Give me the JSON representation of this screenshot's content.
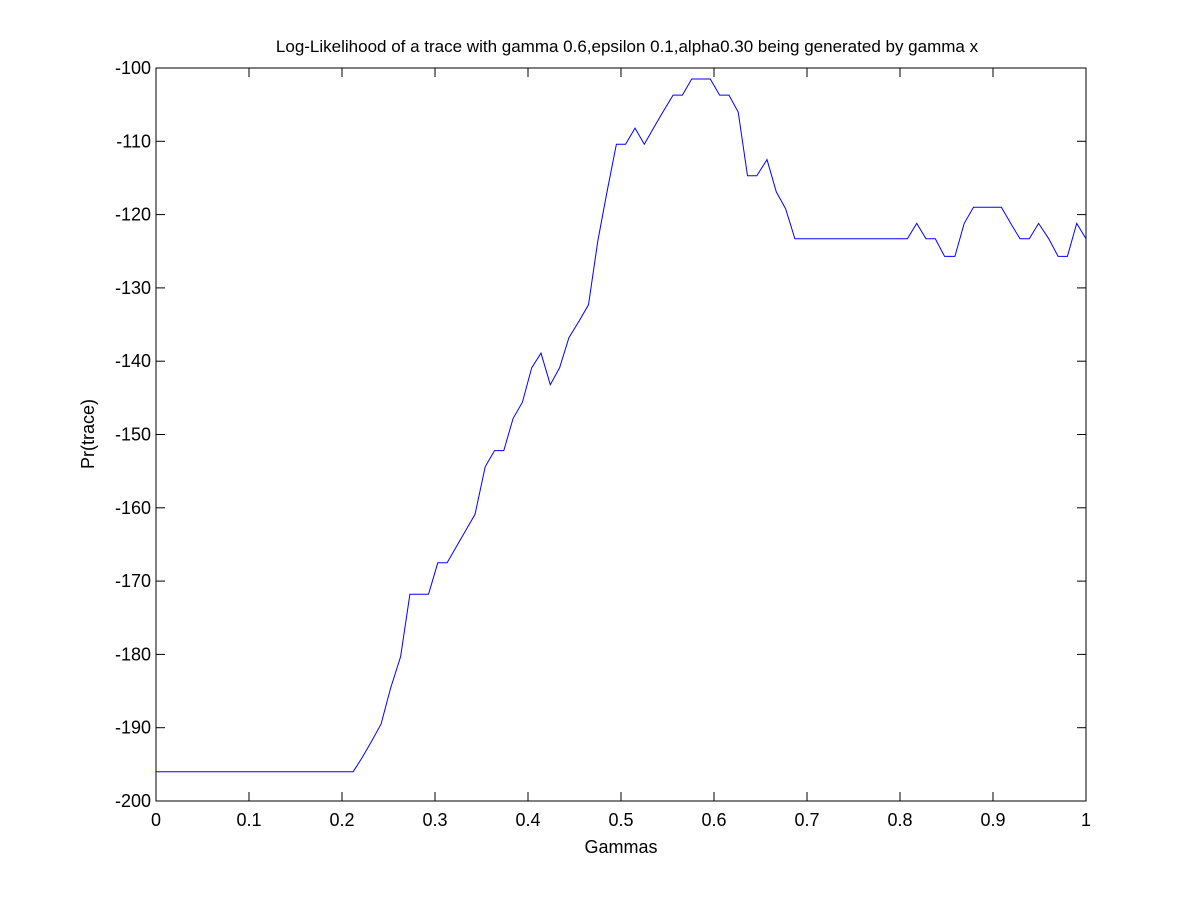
{
  "chart_data": {
    "type": "line",
    "title": "Log-Likelihood of a trace with gamma 0.6,epsilon 0.1,alpha0.30 being generated by gamma x",
    "xlabel": "Gammas",
    "ylabel": "Pr(trace)",
    "xlim": [
      0,
      1
    ],
    "ylim": [
      -200,
      -100
    ],
    "xticks": [
      "0",
      "0.1",
      "0.2",
      "0.3",
      "0.4",
      "0.5",
      "0.6",
      "0.7",
      "0.8",
      "0.9",
      "1"
    ],
    "yticks": [
      "-100",
      "-110",
      "-120",
      "-130",
      "-140",
      "-150",
      "-160",
      "-170",
      "-180",
      "-190",
      "-200"
    ],
    "xtick_values": [
      0,
      0.1,
      0.2,
      0.3,
      0.4,
      0.5,
      0.6,
      0.7,
      0.8,
      0.9,
      1
    ],
    "ytick_values": [
      -100,
      -110,
      -120,
      -130,
      -140,
      -150,
      -160,
      -170,
      -180,
      -190,
      -200
    ],
    "grid": false,
    "line_color": "#0000ff",
    "series": [
      {
        "x": [
          0,
          0.212,
          0.222,
          0.232,
          0.242,
          0.252,
          0.263,
          0.273,
          0.283,
          0.293,
          0.303,
          0.313,
          0.323,
          0.333,
          0.343,
          0.354,
          0.364,
          0.374,
          0.384,
          0.394,
          0.404,
          0.414,
          0.424,
          0.434,
          0.444,
          0.455,
          0.465,
          0.475,
          0.485,
          0.495,
          0.505,
          0.515,
          0.525,
          0.535,
          0.545,
          0.556,
          0.566,
          0.576,
          0.586,
          0.596,
          0.606,
          0.616,
          0.626,
          0.636,
          0.646,
          0.657,
          0.667,
          0.677,
          0.687,
          0.808,
          0.818,
          0.828,
          0.838,
          0.848,
          0.859,
          0.869,
          0.879,
          0.889,
          0.899,
          0.909,
          0.919,
          0.929,
          0.939,
          0.949,
          0.96,
          0.97,
          0.98,
          0.99,
          1.0
        ],
        "y": [
          -196,
          -196,
          -194,
          -191.8,
          -189.5,
          -184.7,
          -180.3,
          -171.8,
          -171.8,
          -171.8,
          -167.5,
          -167.5,
          -165.3,
          -163.1,
          -160.9,
          -154.4,
          -152.2,
          -152.2,
          -147.8,
          -145.6,
          -140.9,
          -138.9,
          -143.2,
          -140.9,
          -136.8,
          -134.5,
          -132.3,
          -123.6,
          -116.9,
          -110.4,
          -110.4,
          -108.2,
          -110.4,
          -108.2,
          -106.0,
          -103.7,
          -103.7,
          -101.5,
          -101.5,
          -101.5,
          -103.7,
          -103.7,
          -106.0,
          -114.7,
          -114.7,
          -112.5,
          -116.9,
          -119.2,
          -123.3,
          -123.3,
          -121.2,
          -123.3,
          -123.3,
          -125.7,
          -125.7,
          -121.2,
          -119.0,
          -119.0,
          -119.0,
          -119.0,
          -121.2,
          -123.3,
          -123.3,
          -121.2,
          -123.3,
          -125.7,
          -125.7,
          -121.2,
          -123.3
        ]
      }
    ]
  }
}
